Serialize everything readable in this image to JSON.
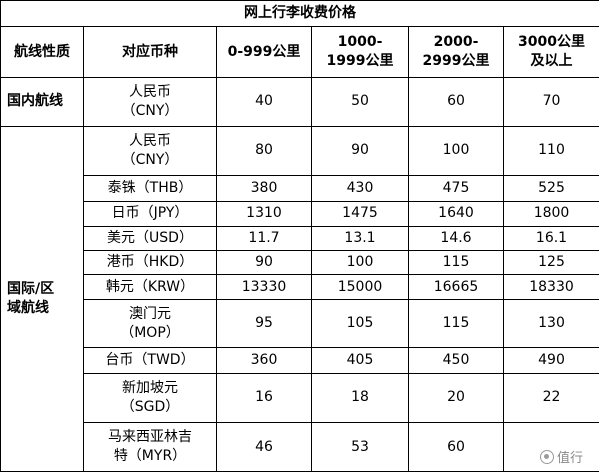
{
  "table": {
    "title": "网上行李收费价格",
    "headers": [
      "航线性质",
      "对应币种",
      "0-999公里",
      "1000-\n1999公里",
      "2000-\n2999公里",
      "3000公里\n及以上"
    ],
    "domestic": {
      "route_type": "国内航线",
      "currency": "人民币\n（CNY）",
      "fees": [
        "40",
        "50",
        "60",
        "70"
      ]
    },
    "international": {
      "route_type": "国际/区\n域航线",
      "rows": [
        {
          "currency": "人民币\n（CNY）",
          "fees": [
            "80",
            "90",
            "100",
            "110"
          ]
        },
        {
          "currency": "泰铢（THB）",
          "fees": [
            "380",
            "430",
            "475",
            "525"
          ]
        },
        {
          "currency": "日币（JPY）",
          "fees": [
            "1310",
            "1475",
            "1640",
            "1800"
          ]
        },
        {
          "currency": "美元（USD）",
          "fees": [
            "11.7",
            "13.1",
            "14.6",
            "16.1"
          ]
        },
        {
          "currency": "港币（HKD）",
          "fees": [
            "90",
            "100",
            "115",
            "125"
          ]
        },
        {
          "currency": "韩元（KRW）",
          "fees": [
            "13330",
            "15000",
            "16665",
            "18330"
          ]
        },
        {
          "currency": "澳门元\n（MOP）",
          "fees": [
            "95",
            "105",
            "115",
            "130"
          ]
        },
        {
          "currency": "台币（TWD）",
          "fees": [
            "360",
            "405",
            "450",
            "490"
          ]
        },
        {
          "currency": "新加坡元\n（SGD）",
          "fees": [
            "16",
            "18",
            "20",
            "22"
          ]
        },
        {
          "currency": "马来西亚林吉\n特（MYR）",
          "fees": [
            "46",
            "53",
            "60",
            ""
          ]
        }
      ]
    }
  },
  "watermark": {
    "text": "值行",
    "icon": "circle-logo-icon"
  }
}
